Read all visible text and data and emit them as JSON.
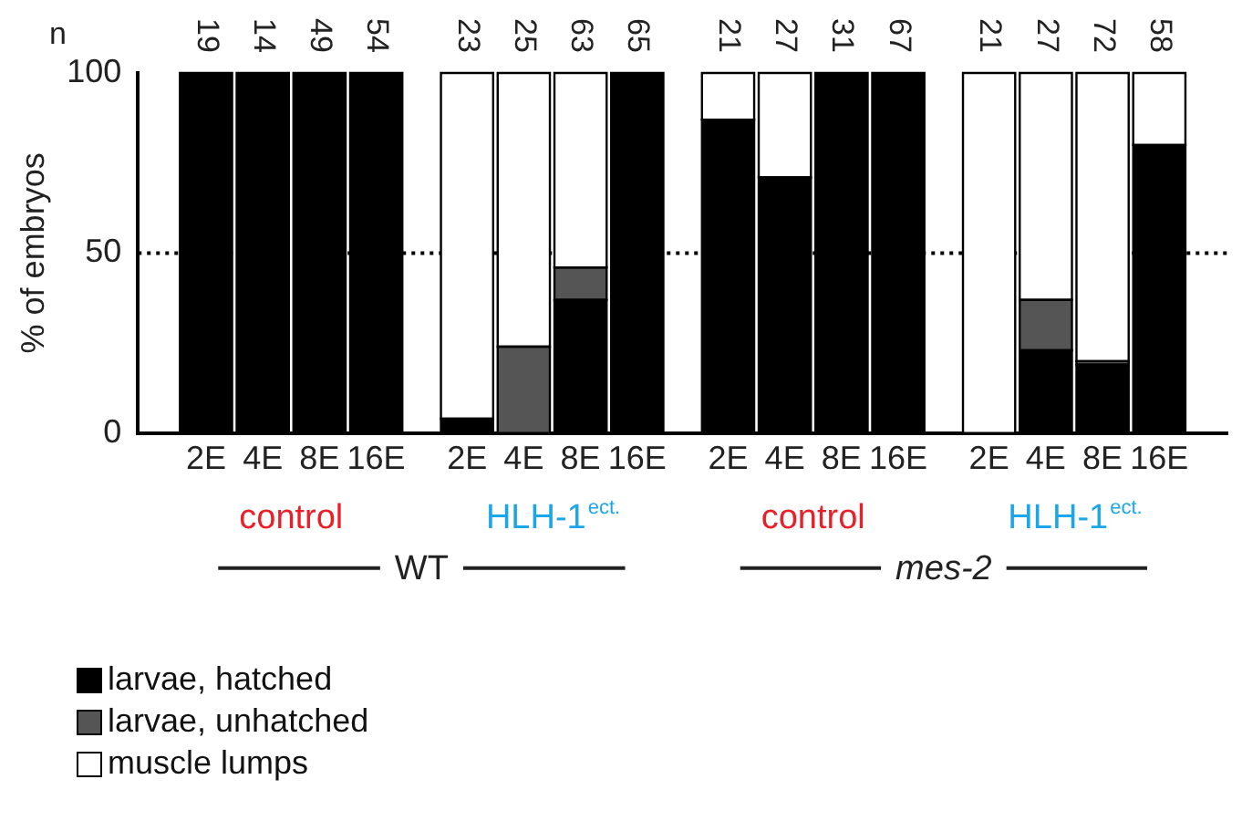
{
  "chart_data": {
    "type": "bar",
    "stacked": true,
    "ylabel": "% of embryos",
    "categories": [
      "2E",
      "4E",
      "8E",
      "16E",
      "2E",
      "4E",
      "8E",
      "16E",
      "2E",
      "4E",
      "8E",
      "16E",
      "2E",
      "4E",
      "8E",
      "16E"
    ],
    "series": [
      {
        "name": "larvae, hatched",
        "color": "#000000",
        "values": [
          100,
          100,
          100,
          100,
          4,
          0,
          37,
          100,
          87,
          71,
          100,
          100,
          0,
          23,
          19,
          80
        ]
      },
      {
        "name": "larvae, unhatched",
        "color": "#555555",
        "values": [
          0,
          0,
          0,
          0,
          0,
          24,
          9,
          0,
          0,
          0,
          0,
          0,
          0,
          14,
          1,
          0
        ]
      },
      {
        "name": "muscle lumps",
        "color": "#ffffff",
        "values": [
          0,
          0,
          0,
          0,
          96,
          76,
          54,
          0,
          13,
          29,
          0,
          0,
          100,
          63,
          80,
          20
        ]
      }
    ],
    "annotations": [
      "n",
      "19",
      "14",
      "49",
      "54",
      "23",
      "25",
      "63",
      "65",
      "21",
      "27",
      "31",
      "67",
      "21",
      "27",
      "72",
      "58",
      "control",
      "HLH-1$^{ect.}$",
      "control",
      "HLH-1$^{ect.}$",
      "WT",
      "mes-2"
    ],
    "ylim": [
      0,
      100
    ],
    "yticks": [
      0,
      50,
      100
    ],
    "ref_lines": [
      {
        "axis": "y",
        "value": 50,
        "line_style": "dotted",
        "color": "#000000"
      }
    ],
    "grid": false,
    "legend": "bottom left"
  }
}
